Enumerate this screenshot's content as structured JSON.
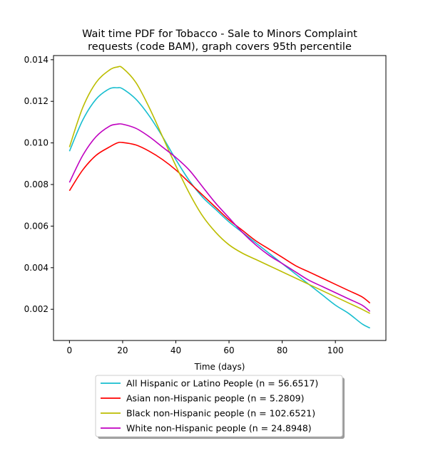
{
  "chart_data": {
    "type": "line",
    "title": "Wait time PDF for Tobacco - Sale to Minors Complaint requests (code BAM), graph covers 95th percentile",
    "title_lines": [
      "Wait time PDF for Tobacco - Sale to Minors Complaint",
      "requests (code BAM), graph covers 95th percentile"
    ],
    "xlabel": "Time (days)",
    "ylabel": "",
    "xlim": [
      -6,
      119
    ],
    "ylim": [
      0.0005,
      0.0142
    ],
    "xticks": [
      0,
      20,
      40,
      60,
      80,
      100
    ],
    "yticks": [
      0.002,
      0.004,
      0.006,
      0.008,
      0.01,
      0.012,
      0.014
    ],
    "ytick_labels": [
      "0.002",
      "0.004",
      "0.006",
      "0.008",
      "0.010",
      "0.012",
      "0.014"
    ],
    "grid": false,
    "legend_position": "below",
    "x": [
      0,
      5,
      10,
      15,
      18,
      20,
      25,
      30,
      35,
      40,
      45,
      50,
      55,
      60,
      65,
      70,
      75,
      80,
      85,
      90,
      95,
      100,
      105,
      110,
      113
    ],
    "series": [
      {
        "name": "All Hispanic or Latino People (n = 56.6517)",
        "color": "#17becf",
        "values": [
          0.0096,
          0.0111,
          0.0121,
          0.0126,
          0.01265,
          0.0126,
          0.0121,
          0.0113,
          0.0103,
          0.0092,
          0.0082,
          0.0074,
          0.0068,
          0.0062,
          0.0057,
          0.0052,
          0.0047,
          0.0042,
          0.0037,
          0.0032,
          0.0027,
          0.0022,
          0.0018,
          0.0013,
          0.0011
        ]
      },
      {
        "name": "Asian non-Hispanic people (n = 5.2809)",
        "color": "#ff0000",
        "values": [
          0.0077,
          0.0087,
          0.0094,
          0.0098,
          0.01,
          0.01002,
          0.0099,
          0.0096,
          0.0092,
          0.0087,
          0.0081,
          0.0075,
          0.0069,
          0.0063,
          0.0058,
          0.0053,
          0.0049,
          0.0045,
          0.0041,
          0.0038,
          0.0035,
          0.0032,
          0.0029,
          0.0026,
          0.0023
        ]
      },
      {
        "name": "Black non-Hispanic people (n = 102.6521)",
        "color": "#bcbd00",
        "values": [
          0.0098,
          0.0117,
          0.0129,
          0.0135,
          0.01365,
          0.0136,
          0.0129,
          0.0117,
          0.0103,
          0.0089,
          0.0076,
          0.0065,
          0.0057,
          0.0051,
          0.0047,
          0.0044,
          0.0041,
          0.0038,
          0.0035,
          0.0032,
          0.0029,
          0.0026,
          0.0023,
          0.002,
          0.0018
        ]
      },
      {
        "name": "White non-Hispanic people (n = 24.8948)",
        "color": "#c000c0",
        "values": [
          0.0081,
          0.0094,
          0.0103,
          0.0108,
          0.0109,
          0.0109,
          0.0107,
          0.0103,
          0.0098,
          0.0093,
          0.0087,
          0.0079,
          0.0071,
          0.0064,
          0.0057,
          0.0051,
          0.0046,
          0.0042,
          0.0038,
          0.0034,
          0.0031,
          0.0028,
          0.0025,
          0.0022,
          0.0019
        ]
      }
    ]
  }
}
